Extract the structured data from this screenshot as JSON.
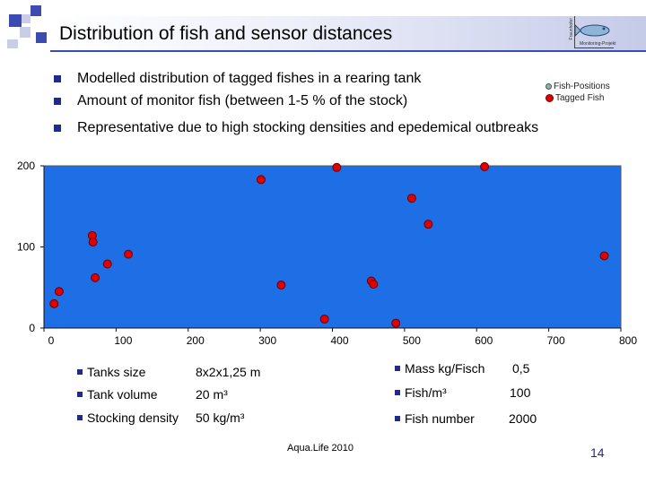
{
  "title": "Distribution of fish and sensor distances",
  "logo": {
    "side_text": "Fraunhofer",
    "caption": "Monitoring-Projekt"
  },
  "bullets": [
    "Modelled distribution of tagged fishes in a rearing tank",
    "Amount of monitor fish (between 1-5 % of the stock)",
    "Representative due to high stocking densities and epedemical outbreaks"
  ],
  "legend": {
    "positions": "Fish-Positions",
    "tagged": "Tagged Fish"
  },
  "colors": {
    "plot_bg": "#1e6fe6",
    "marker": "#e00000",
    "accent": "#1f2a8a"
  },
  "chart_data": {
    "type": "scatter",
    "xlim": [
      0,
      800
    ],
    "ylim": [
      0,
      200
    ],
    "x_ticks": [
      "0",
      "100",
      "200",
      "300",
      "400",
      "500",
      "600",
      "700",
      "800"
    ],
    "y_ticks": [
      "0",
      "100",
      "200"
    ],
    "series": [
      {
        "name": "Tagged Fish",
        "points": [
          [
            14,
            30
          ],
          [
            21,
            45
          ],
          [
            67,
            114
          ],
          [
            68,
            106
          ],
          [
            71,
            62
          ],
          [
            88,
            79
          ],
          [
            117,
            91
          ],
          [
            301,
            183
          ],
          [
            329,
            53
          ],
          [
            389,
            11
          ],
          [
            406,
            198
          ],
          [
            454,
            58
          ],
          [
            457,
            54
          ],
          [
            488,
            6
          ],
          [
            510,
            160
          ],
          [
            533,
            128
          ],
          [
            611,
            199
          ],
          [
            777,
            89
          ]
        ]
      }
    ]
  },
  "stats_left": [
    {
      "label": "Tanks size",
      "value": "8x2x1,25 m"
    },
    {
      "label": "Tank volume",
      "value": "20 m³"
    },
    {
      "label": "Stocking density",
      "value": "50 kg/m³"
    }
  ],
  "stats_right": [
    {
      "label": "Mass kg/Fisch",
      "value": "0,5"
    },
    {
      "label": "Fish/m³",
      "value": "100"
    },
    {
      "label": "Fish number",
      "value": "2000"
    }
  ],
  "footer": "Aqua.Life 2010",
  "page_number": "14"
}
